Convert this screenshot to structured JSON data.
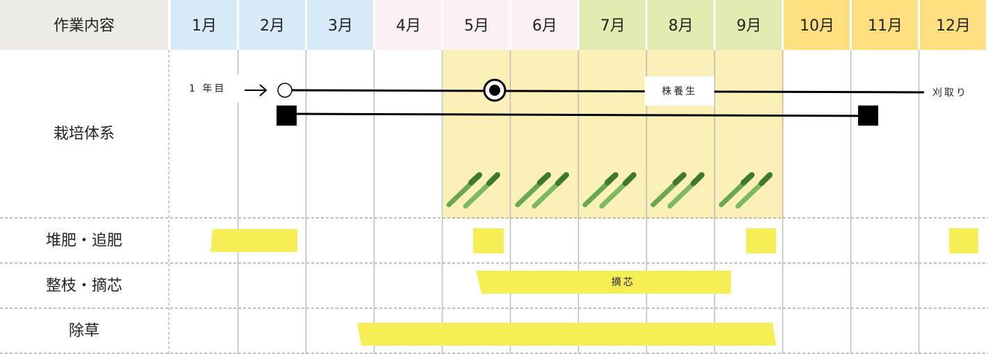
{
  "header": {
    "label": "作業内容",
    "months": [
      "1月",
      "2月",
      "3月",
      "4月",
      "5月",
      "6月",
      "7月",
      "8月",
      "9月",
      "10月",
      "11月",
      "12月"
    ]
  },
  "rows": [
    "栽培体系",
    "堆肥・追肥",
    "整枝・摘芯",
    "除草"
  ],
  "annotations": {
    "first_year": "1 年目",
    "recovery": "株養生",
    "harvest": "刈取り",
    "pinching": "摘芯"
  }
}
